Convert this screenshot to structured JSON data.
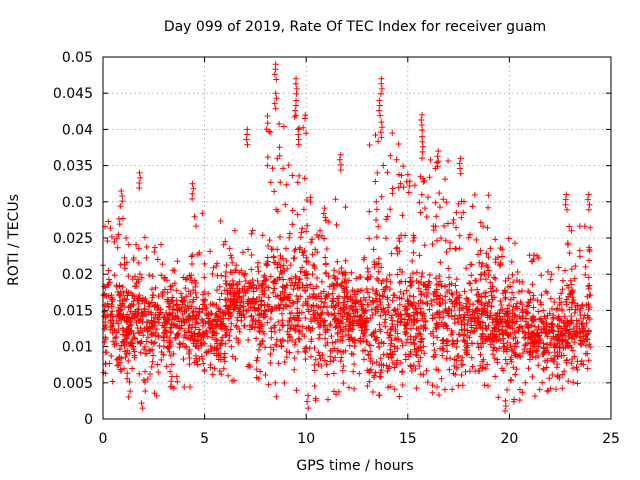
{
  "chart_data": {
    "type": "scatter",
    "title": "Day 099 of 2019, Rate Of TEC Index for receiver guam",
    "xlabel": "GPS time / hours",
    "ylabel": "ROTI / TECUs",
    "xlim": [
      0,
      25
    ],
    "ylim": [
      0,
      0.05
    ],
    "xticks": [
      0,
      5,
      10,
      15,
      20,
      25
    ],
    "xtick_labels": [
      "0",
      "5",
      "10",
      "15",
      "20",
      "25"
    ],
    "yticks": [
      0,
      0.005,
      0.01,
      0.015,
      0.02,
      0.025,
      0.03,
      0.035,
      0.04,
      0.045,
      0.05
    ],
    "ytick_labels": [
      "0",
      "0.005",
      "0.01",
      "0.015",
      "0.02",
      "0.025",
      "0.03",
      "0.035",
      "0.04",
      "0.045",
      "0.05"
    ],
    "grid": true,
    "marker": "+",
    "color": "#ff0000",
    "series": [
      {
        "name": "ROTI",
        "data_range_x": [
          0,
          24
        ],
        "bands": [
          {
            "x": [
              0,
              1
            ],
            "y_min": 0.005,
            "y_max": 0.032,
            "typical": 0.015
          },
          {
            "x": [
              1,
              3
            ],
            "y_min": 0.003,
            "y_max": 0.029,
            "typical": 0.013
          },
          {
            "x": [
              3,
              4.5
            ],
            "y_min": 0.004,
            "y_max": 0.026,
            "typical": 0.014
          },
          {
            "x": [
              4.5,
              6
            ],
            "y_min": 0.006,
            "y_max": 0.033,
            "typical": 0.012
          },
          {
            "x": [
              6,
              8
            ],
            "y_min": 0.005,
            "y_max": 0.03,
            "typical": 0.016
          },
          {
            "x": [
              8,
              10
            ],
            "y_min": 0.003,
            "y_max": 0.049,
            "typical": 0.016
          },
          {
            "x": [
              10,
              12
            ],
            "y_min": 0.002,
            "y_max": 0.036,
            "typical": 0.015
          },
          {
            "x": [
              12,
              13
            ],
            "y_min": 0.004,
            "y_max": 0.026,
            "typical": 0.014
          },
          {
            "x": [
              13,
              15
            ],
            "y_min": 0.003,
            "y_max": 0.047,
            "typical": 0.014
          },
          {
            "x": [
              15,
              17
            ],
            "y_min": 0.003,
            "y_max": 0.042,
            "typical": 0.014
          },
          {
            "x": [
              17,
              19
            ],
            "y_min": 0.004,
            "y_max": 0.036,
            "typical": 0.014
          },
          {
            "x": [
              19,
              21
            ],
            "y_min": 0.002,
            "y_max": 0.029,
            "typical": 0.013
          },
          {
            "x": [
              21,
              22.5
            ],
            "y_min": 0.003,
            "y_max": 0.027,
            "typical": 0.012
          },
          {
            "x": [
              22.5,
              24
            ],
            "y_min": 0.004,
            "y_max": 0.031,
            "typical": 0.013
          }
        ],
        "spikes": [
          {
            "x": 7.1,
            "y": 0.04
          },
          {
            "x": 8.5,
            "y": 0.049
          },
          {
            "x": 8.5,
            "y": 0.045
          },
          {
            "x": 9.5,
            "y": 0.047
          },
          {
            "x": 9.5,
            "y": 0.044
          },
          {
            "x": 9.6,
            "y": 0.04
          },
          {
            "x": 11.7,
            "y": 0.0365
          },
          {
            "x": 13.7,
            "y": 0.047
          },
          {
            "x": 13.6,
            "y": 0.044
          },
          {
            "x": 13.7,
            "y": 0.041
          },
          {
            "x": 15.7,
            "y": 0.042
          },
          {
            "x": 15.7,
            "y": 0.039
          },
          {
            "x": 16.5,
            "y": 0.037
          },
          {
            "x": 17.6,
            "y": 0.036
          },
          {
            "x": 1.8,
            "y": 0.034
          },
          {
            "x": 0.9,
            "y": 0.0315
          },
          {
            "x": 4.4,
            "y": 0.0325
          },
          {
            "x": 23.9,
            "y": 0.031
          },
          {
            "x": 22.8,
            "y": 0.031
          },
          {
            "x": 10.1,
            "y": 0.0015
          },
          {
            "x": 1.9,
            "y": 0.0022
          },
          {
            "x": 19.8,
            "y": 0.0025
          }
        ]
      }
    ]
  }
}
